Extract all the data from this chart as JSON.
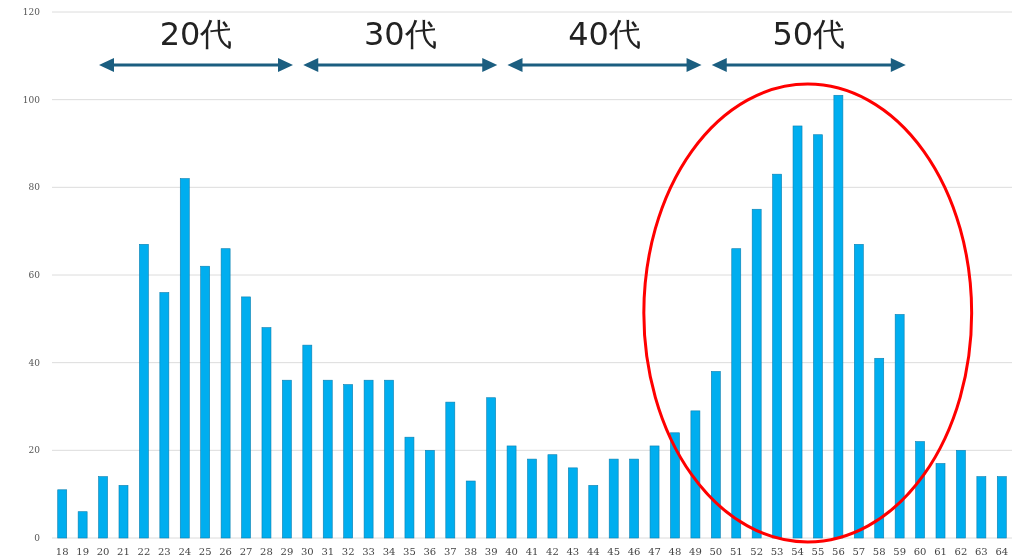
{
  "chart_data": {
    "type": "bar",
    "categories": [
      "18",
      "19",
      "20",
      "21",
      "22",
      "23",
      "24",
      "25",
      "26",
      "27",
      "28",
      "29",
      "30",
      "31",
      "32",
      "33",
      "34",
      "35",
      "36",
      "37",
      "38",
      "39",
      "40",
      "41",
      "42",
      "43",
      "44",
      "45",
      "46",
      "47",
      "48",
      "49",
      "50",
      "51",
      "52",
      "53",
      "54",
      "55",
      "56",
      "57",
      "58",
      "59",
      "60",
      "61",
      "62",
      "63",
      "64"
    ],
    "values": [
      11,
      6,
      14,
      12,
      67,
      56,
      82,
      62,
      66,
      55,
      48,
      36,
      44,
      36,
      35,
      36,
      36,
      23,
      20,
      31,
      13,
      32,
      21,
      18,
      19,
      16,
      12,
      18,
      18,
      21,
      24,
      29,
      38,
      66,
      75,
      83,
      94,
      92,
      101,
      67,
      41,
      51,
      22,
      17,
      20,
      14,
      14
    ],
    "color": "#00aeef",
    "ylim": [
      0,
      120
    ],
    "yticks": [
      0,
      20,
      40,
      60,
      80,
      100,
      120
    ],
    "grid": "y",
    "annotations": [
      "20代",
      "30代",
      "40代",
      "50代"
    ]
  }
}
